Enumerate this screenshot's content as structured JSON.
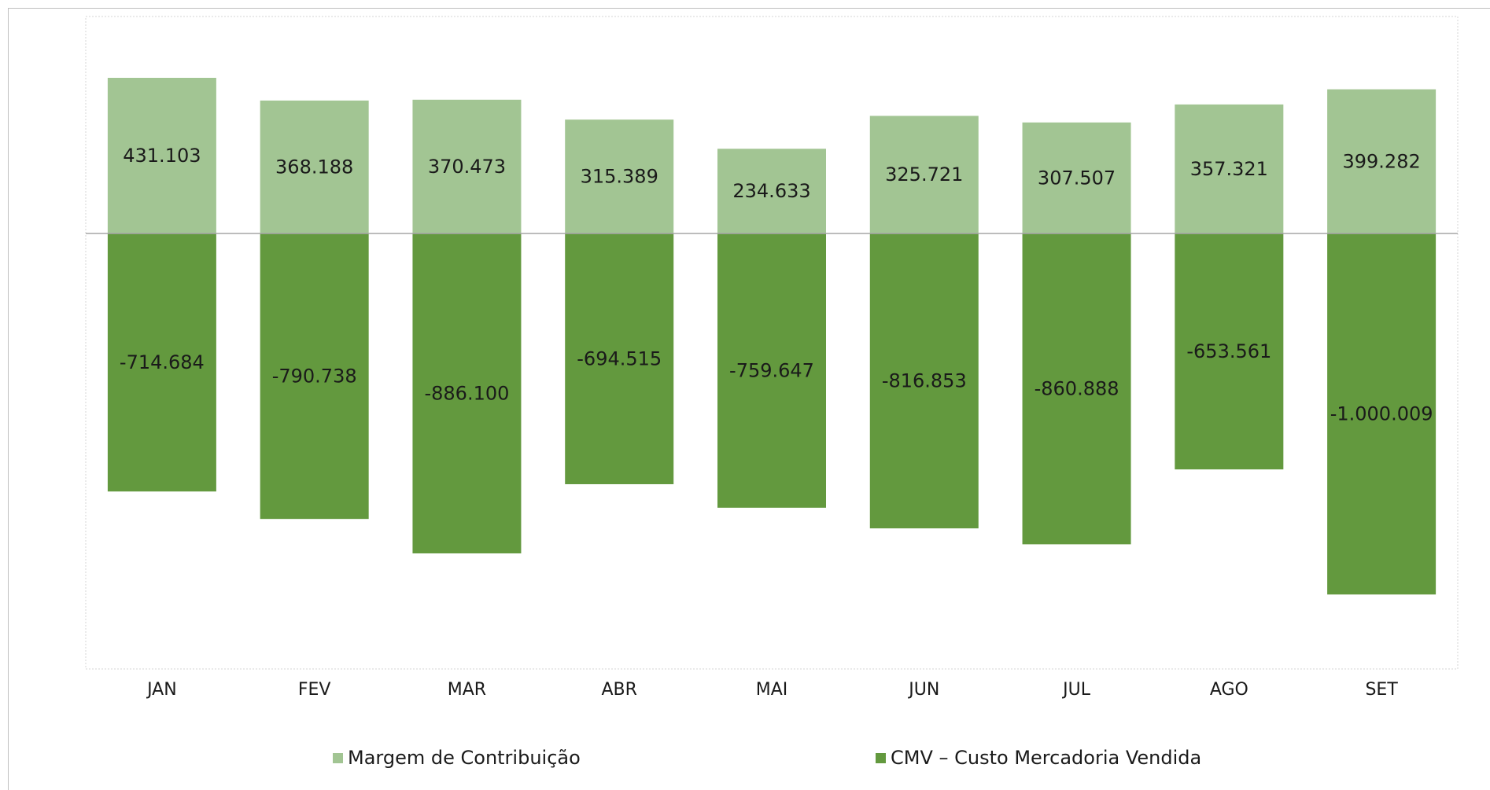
{
  "chart_data": {
    "type": "bar",
    "stacked": true,
    "categories": [
      "JAN",
      "FEV",
      "MAR",
      "ABR",
      "MAI",
      "JUN",
      "JUL",
      "AGO",
      "SET"
    ],
    "series": [
      {
        "name": "Margem de Contribuição",
        "values": [
          431103,
          368188,
          370473,
          315389,
          234633,
          325721,
          307507,
          357321,
          399282
        ],
        "labels": [
          "431.103",
          "368.188",
          "370.473",
          "315.389",
          "234.633",
          "325.721",
          "307.507",
          "357.321",
          "399.282"
        ],
        "color": "#a2c593"
      },
      {
        "name": "CMV – Custo Mercadoria Vendida",
        "values": [
          -714684,
          -790738,
          -886100,
          -694515,
          -759647,
          -816853,
          -860888,
          -653561,
          -1000009
        ],
        "labels": [
          "-714.684",
          "-790.738",
          "-886.100",
          "-694.515",
          "-759.647",
          "-816.853",
          "-860.888",
          "-653.561",
          "-1.000.009"
        ],
        "color": "#63993e"
      }
    ],
    "ylim": [
      -1200000,
      600000
    ],
    "grid": false,
    "legend_position": "bottom",
    "title": "",
    "xlabel": "",
    "ylabel": ""
  }
}
